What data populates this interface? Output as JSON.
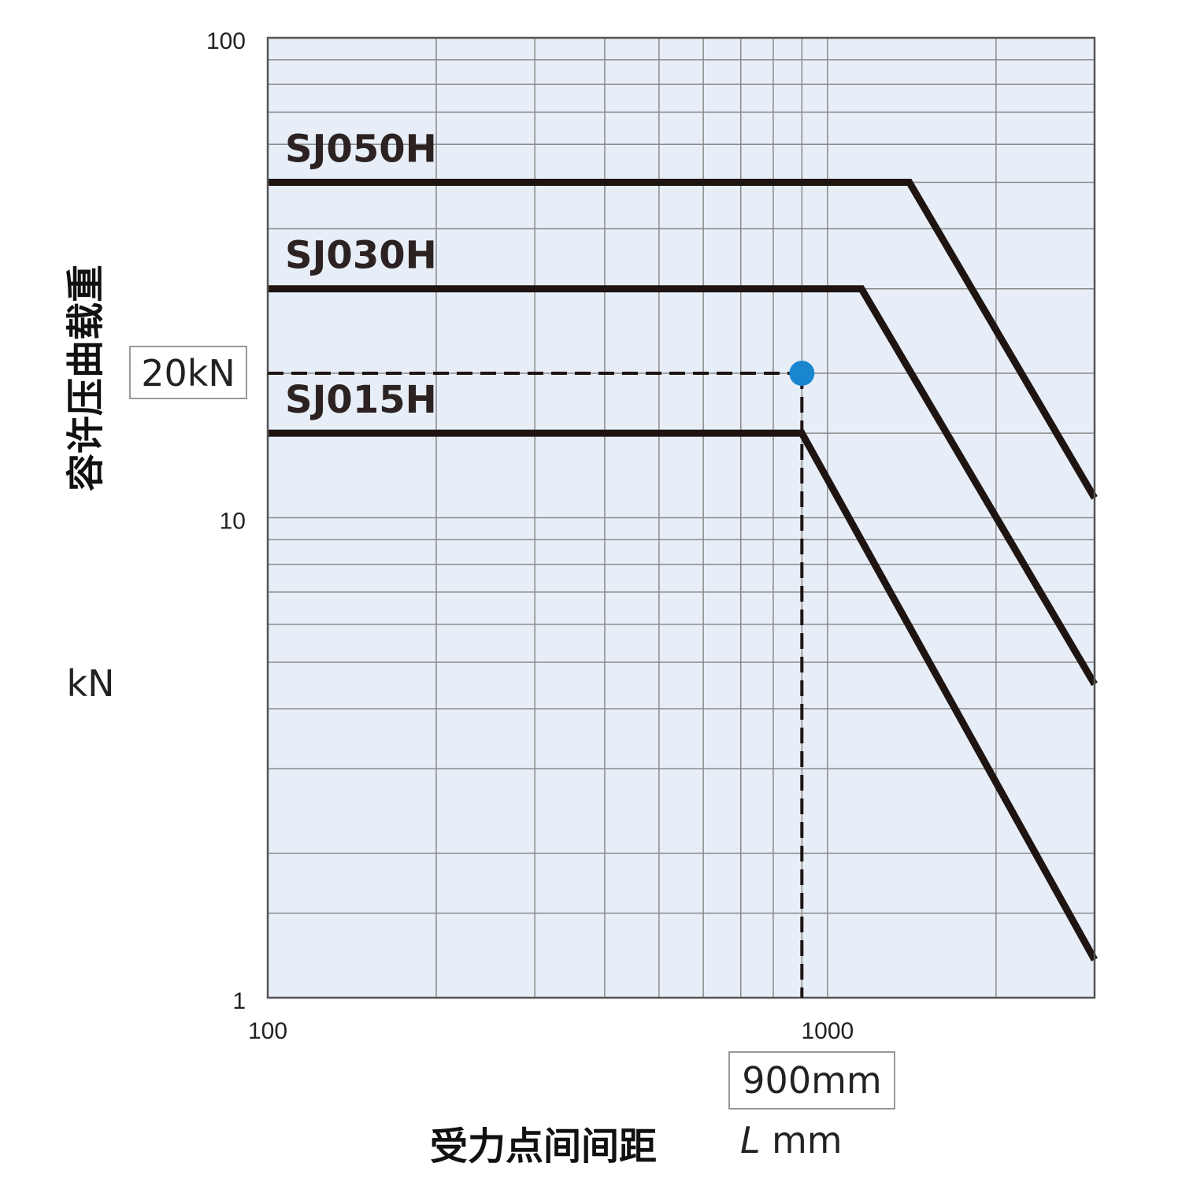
{
  "chart_data": {
    "type": "line",
    "x_scale": "log",
    "y_scale": "log",
    "xlim": [
      100,
      3000
    ],
    "ylim": [
      1,
      100
    ],
    "grid": true,
    "x_ticks": [
      {
        "value": 100,
        "label": "100"
      },
      {
        "value": 1000,
        "label": "1000"
      }
    ],
    "y_ticks": [
      {
        "value": 1,
        "label": "1"
      },
      {
        "value": 10,
        "label": "10"
      },
      {
        "value": 100,
        "label": "100"
      }
    ],
    "x_minor_grid": [
      200,
      300,
      400,
      500,
      600,
      700,
      800,
      900,
      2000
    ],
    "y_minor_grid": [
      1.5,
      2,
      3,
      4,
      5,
      6,
      7,
      8,
      9,
      15,
      20,
      30,
      40,
      50,
      60,
      70,
      80,
      90
    ],
    "ylabel": "容许压曲载重",
    "y_unit": "kN",
    "xlabel": "受力点间间距",
    "x_unit_italic": "L",
    "x_unit": "mm",
    "series": [
      {
        "name": "SJ050H",
        "x": [
          100,
          1400,
          3000
        ],
        "y": [
          50,
          50,
          11
        ]
      },
      {
        "name": "SJ030H",
        "x": [
          100,
          1150,
          3000
        ],
        "y": [
          30,
          30,
          4.5
        ]
      },
      {
        "name": "SJ015H",
        "x": [
          100,
          900,
          3000
        ],
        "y": [
          15,
          15,
          1.2
        ]
      }
    ],
    "reference": {
      "x": 900,
      "y": 20,
      "x_label": "900mm",
      "y_label": "20kN",
      "color": "#1a86d0"
    }
  }
}
